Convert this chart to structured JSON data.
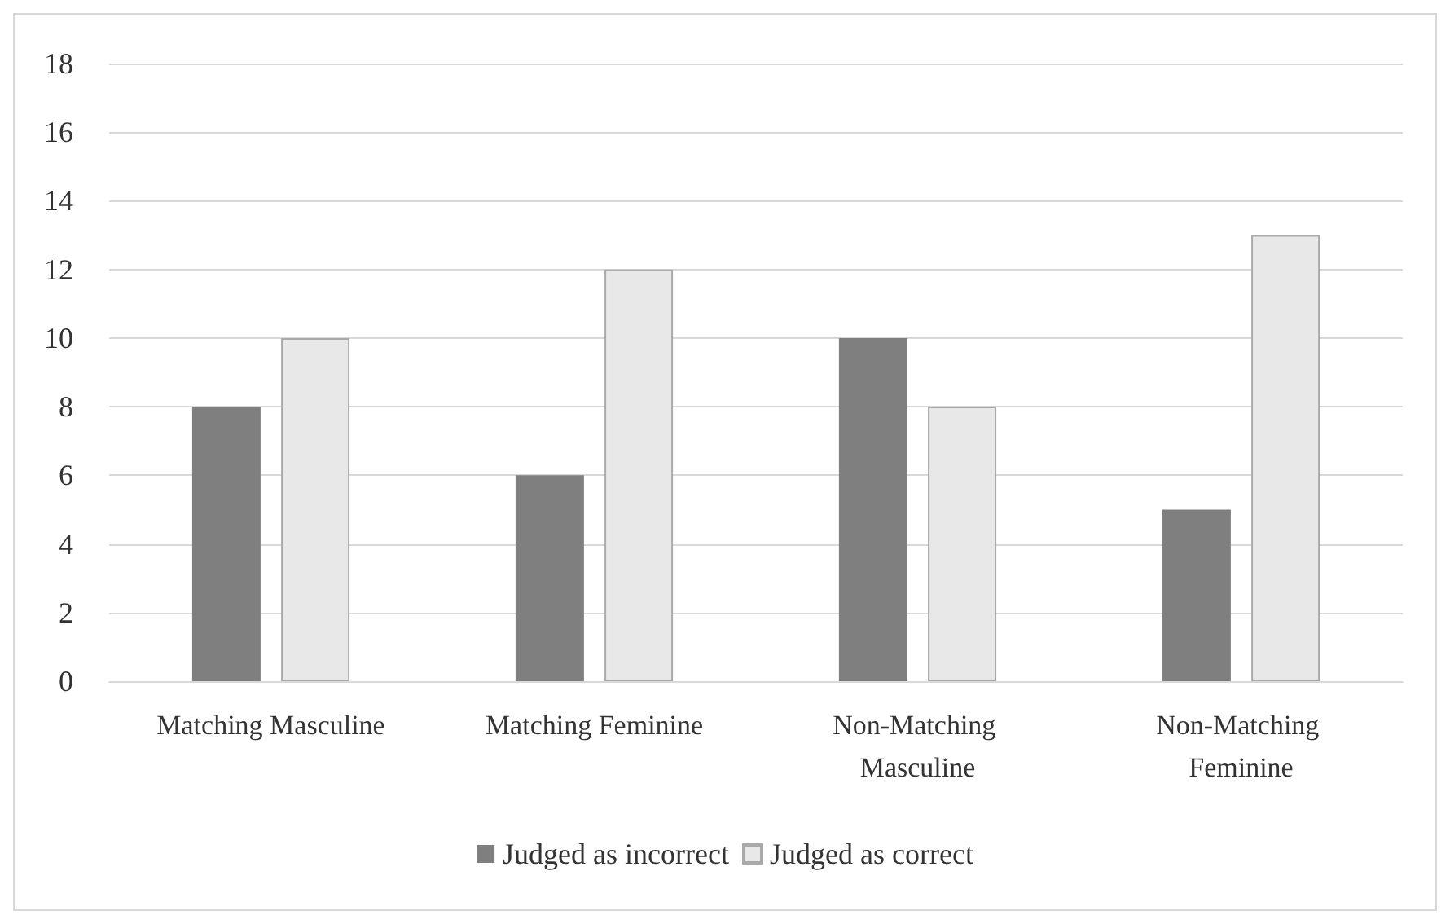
{
  "chart_data": {
    "type": "bar",
    "categories": [
      "Matching Masculine",
      "Matching Feminine",
      "Non-Matching Masculine",
      "Non-Matching Feminine"
    ],
    "series": [
      {
        "name": "Judged as incorrect",
        "color": "#7f7f7f",
        "values": [
          8,
          6,
          10,
          5
        ]
      },
      {
        "name": "Judged as correct",
        "color": "#e8e8e8",
        "values": [
          10,
          12,
          8,
          13
        ]
      }
    ],
    "ylim": [
      0,
      18
    ],
    "yticks": [
      0,
      2,
      4,
      6,
      8,
      10,
      12,
      14,
      16,
      18
    ],
    "grid": "y",
    "legend": "bottom"
  }
}
